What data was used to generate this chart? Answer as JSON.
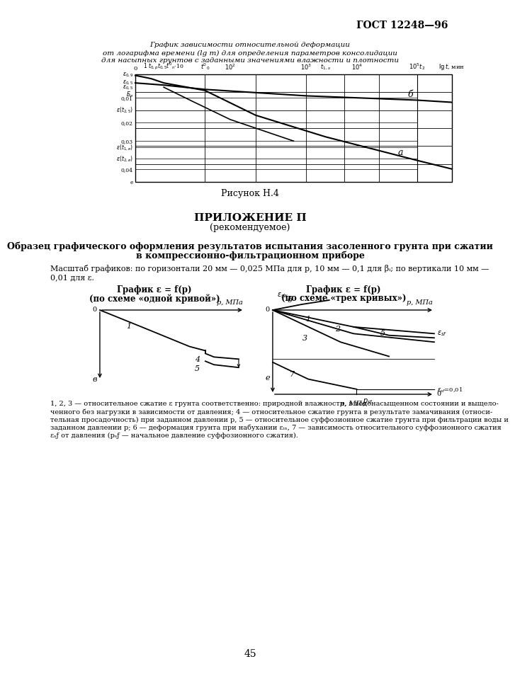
{
  "page_header": "ГОСТ 12248—96",
  "fig_title_line1": "График зависимости относительной деформации",
  "fig_title_line2": "от логарифма времени (lg т) для определения параметров консолидации",
  "fig_title_line3": "для насыпных грунтов с заданными значениями влажности и плотности",
  "fig_caption": "Рисунок Н.4",
  "appendix_title": "ПРИЛОЖЕНИЕ П",
  "appendix_subtitle": "(рекомендуемое)",
  "section_title": "Образец графического оформления результатов испытания засоленного грунта при сжатии",
  "section_title2": "в компрессионно-фильтрационном приборе",
  "scale_text": "Масштаб графиков: по горизонтали 20 мм — 0,025 МПа для р, 10 мм — 0,1 для βᵢ; по вертикали 10 мм —",
  "scale_text2": "0,01 для ε.",
  "chart1_title_line1": "График ε = f(p)",
  "chart1_title_line2": "(по схеме «одной кривой»)",
  "chart2_title_line1": "График ε = f(p)",
  "chart2_title_line2": "(по схеме «трех кривых»)",
  "footer_text": "1, 2, 3 — относительное сжатие ε грунта соответственно: природной влажности, в водонасыщенном состоянии и выщело-",
  "footer_text2": "ченного без нагрузки в зависимости от давления; 4 — относительное сжатие грунта в результате замачивания (относи-",
  "footer_text3": "тельная просадочность) при заданном давлении р, 5 — относительное суффозионное сжатие грунта при фильтрации воды и",
  "footer_text4": "заданном давлении р; 6 — деформация грунта при набухании εᵢₙ, 7 — зависимость относительного суффозионного сжатия",
  "footer_text5": "εₛƒ от давления (рₛƒ — начальное давление суффозионного сжатия).",
  "page_number": "45",
  "background_color": "#ffffff"
}
